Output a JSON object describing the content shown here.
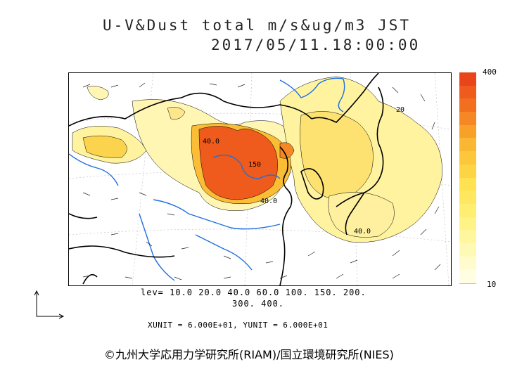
{
  "title": {
    "line1": "U-V&Dust total m/s&ug/m3 JST",
    "line2": "2017/05/11.18:00:00"
  },
  "colorbar": {
    "max_label": "400",
    "min_label": "10",
    "colors": [
      "#e8461a",
      "#ee5b1c",
      "#f16f1f",
      "#f58824",
      "#f8a129",
      "#fab733",
      "#fcc73b",
      "#fdd444",
      "#fee250",
      "#ffe85f",
      "#ffee72",
      "#fff287",
      "#fff69e",
      "#fff9b6",
      "#fffbcc",
      "#fffde2"
    ]
  },
  "contour_labels": [
    "40.0",
    "40.0",
    "150",
    "40.0",
    "20"
  ],
  "levels": {
    "line1": "lev= 10.0 20.0 40.0 60.0 100. 150. 200.",
    "line2": "300. 400."
  },
  "units": "XUNIT = 6.000E+01, YUNIT = 6.000E+01",
  "copyright": "©九州大学応用力学研究所(RIAM)/国立環境研究所(NIES)",
  "legend_colors": {
    "dust_high": "#e8461a",
    "dust_mid": "#fcc73b",
    "dust_low": "#fffbcc",
    "rivers": "#1e6fe0",
    "coastline": "#000000"
  }
}
